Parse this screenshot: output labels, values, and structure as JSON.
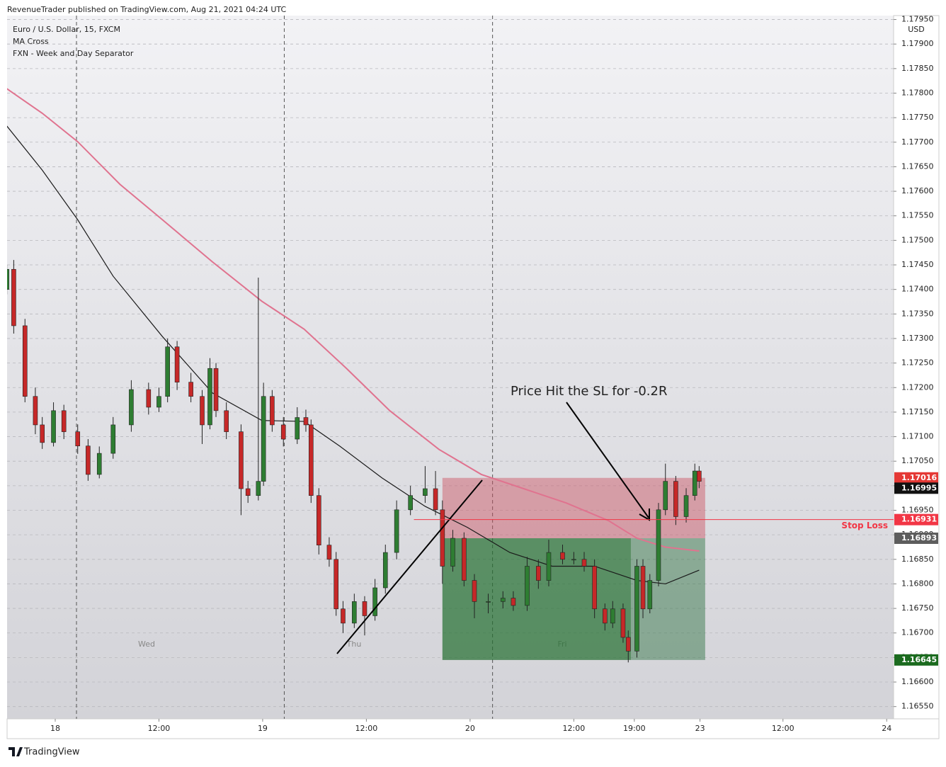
{
  "header": "RevenueTrader published on TradingView.com, Aug 21, 2021 04:24 UTC",
  "footer": "TradingView",
  "chart_data": {
    "type": "candlestick",
    "legend": [
      "Euro / U.S. Dollar, 15, FXCM",
      "MA Cross",
      "FXN - Week and Day Separator"
    ],
    "y_axis_label": "USD",
    "annotation": "Price Hit the SL for -0.2R",
    "day_labels": [
      "Wed",
      "Thu",
      "Fri"
    ],
    "up_color": "#2e7d32",
    "down_color": "#c62828",
    "grid": true,
    "xlim": [
      -5.57,
      97
    ],
    "ylim": [
      1.16525,
      1.17958
    ],
    "xticks": [
      {
        "value": 0,
        "label": "18"
      },
      {
        "value": 12,
        "label": "12:00"
      },
      {
        "value": 24,
        "label": "19"
      },
      {
        "value": 36,
        "label": "12:00"
      },
      {
        "value": 48,
        "label": "20"
      },
      {
        "value": 60,
        "label": "12:00"
      },
      {
        "value": 67,
        "label": "19:00"
      },
      {
        "value": 74.6,
        "label": "23"
      },
      {
        "value": 84.2,
        "label": "12:00"
      },
      {
        "value": 96.2,
        "label": "24"
      }
    ],
    "yticks": [
      {
        "value": 1.1655,
        "label": "1.16550"
      },
      {
        "value": 1.166,
        "label": "1.16600"
      },
      {
        "value": 1.1665,
        "label": "1.16650"
      },
      {
        "value": 1.167,
        "label": "1.16700"
      },
      {
        "value": 1.1675,
        "label": "1.16750"
      },
      {
        "value": 1.168,
        "label": "1.16800"
      },
      {
        "value": 1.1685,
        "label": "1.16850"
      },
      {
        "value": 1.169,
        "label": "1.16900"
      },
      {
        "value": 1.1695,
        "label": "1.16950"
      },
      {
        "value": 1.17,
        "label": "1.17000"
      },
      {
        "value": 1.1705,
        "label": "1.17050"
      },
      {
        "value": 1.171,
        "label": "1.17100"
      },
      {
        "value": 1.1715,
        "label": "1.17150"
      },
      {
        "value": 1.172,
        "label": "1.17200"
      },
      {
        "value": 1.1725,
        "label": "1.17250"
      },
      {
        "value": 1.173,
        "label": "1.17300"
      },
      {
        "value": 1.1735,
        "label": "1.17350"
      },
      {
        "value": 1.174,
        "label": "1.17400"
      },
      {
        "value": 1.1745,
        "label": "1.17450"
      },
      {
        "value": 1.175,
        "label": "1.17500"
      },
      {
        "value": 1.1755,
        "label": "1.17550"
      },
      {
        "value": 1.176,
        "label": "1.17600"
      },
      {
        "value": 1.1765,
        "label": "1.17650"
      },
      {
        "value": 1.177,
        "label": "1.17700"
      },
      {
        "value": 1.1775,
        "label": "1.17750"
      },
      {
        "value": 1.178,
        "label": "1.17800"
      },
      {
        "value": 1.1785,
        "label": "1.17850"
      },
      {
        "value": 1.179,
        "label": "1.17900"
      },
      {
        "value": 1.1795,
        "label": "1.17950"
      }
    ],
    "separators": [
      2.46,
      26.5,
      50.6
    ],
    "x": [
      -5.6,
      -4.8,
      -3.5,
      -2.3,
      -1.5,
      -0.2,
      1.0,
      2.6,
      3.8,
      5.1,
      6.7,
      8.8,
      10.8,
      12.0,
      13.0,
      14.1,
      15.7,
      17.0,
      17.9,
      18.6,
      19.8,
      21.5,
      22.3,
      23.5,
      24.1,
      25.1,
      26.4,
      28.0,
      29.0,
      29.6,
      30.5,
      31.7,
      32.5,
      33.3,
      34.6,
      35.8,
      37.0,
      38.2,
      39.5,
      41.1,
      42.8,
      44.0,
      44.8,
      46.0,
      47.3,
      48.5,
      50.1,
      51.8,
      53.0,
      54.6,
      55.9,
      57.1,
      58.7,
      60.0,
      61.2,
      62.4,
      63.6,
      64.5,
      65.7,
      66.3,
      67.3,
      68.0,
      68.8,
      69.8,
      70.6,
      71.8,
      73.0,
      74.0,
      74.5
    ],
    "open": [
      1.174,
      1.17441,
      1.17326,
      1.17182,
      1.17124,
      1.17088,
      1.17153,
      1.1711,
      1.17081,
      1.17023,
      1.17066,
      1.17124,
      1.17196,
      1.1716,
      1.17182,
      1.17283,
      1.17211,
      1.17182,
      1.17124,
      1.17239,
      1.17153,
      1.1711,
      1.16994,
      1.1698,
      1.17009,
      1.17182,
      1.17124,
      1.17095,
      1.17139,
      1.17124,
      1.1698,
      1.16879,
      1.1685,
      1.16749,
      1.1672,
      1.16764,
      1.16735,
      1.16792,
      1.16864,
      1.16951,
      1.1698,
      1.16994,
      1.16951,
      1.16836,
      1.16893,
      1.16807,
      1.16764,
      1.16764,
      1.16771,
      1.16756,
      1.16836,
      1.16807,
      1.16864,
      1.1685,
      1.1685,
      1.16836,
      1.16749,
      1.1672,
      1.16749,
      1.16691,
      1.16663,
      1.16836,
      1.16749,
      1.16807,
      1.16951,
      1.17009,
      1.16937,
      1.1698,
      1.1703
    ],
    "high": [
      1.1745,
      1.1746,
      1.1734,
      1.172,
      1.1714,
      1.1717,
      1.17165,
      1.17125,
      1.17095,
      1.1708,
      1.1714,
      1.17215,
      1.1721,
      1.172,
      1.173,
      1.17295,
      1.1723,
      1.17195,
      1.1726,
      1.1725,
      1.1717,
      1.17125,
      1.1701,
      1.17424,
      1.1721,
      1.17195,
      1.1714,
      1.1716,
      1.17155,
      1.17135,
      1.16995,
      1.16895,
      1.16865,
      1.16765,
      1.1678,
      1.16775,
      1.1681,
      1.1688,
      1.1697,
      1.17,
      1.1704,
      1.1703,
      1.1697,
      1.1691,
      1.16905,
      1.1682,
      1.1678,
      1.16785,
      1.16785,
      1.16855,
      1.1685,
      1.1689,
      1.1688,
      1.16865,
      1.16865,
      1.1685,
      1.1676,
      1.16765,
      1.1676,
      1.16705,
      1.1685,
      1.1685,
      1.1682,
      1.16965,
      1.17045,
      1.1702,
      1.16995,
      1.17045,
      1.1704
    ],
    "low": [
      1.1739,
      1.1731,
      1.1717,
      1.17105,
      1.17075,
      1.1708,
      1.17095,
      1.17065,
      1.1701,
      1.17015,
      1.17055,
      1.1711,
      1.17145,
      1.1715,
      1.1717,
      1.17195,
      1.1717,
      1.17085,
      1.17115,
      1.1714,
      1.17095,
      1.1694,
      1.16965,
      1.1697,
      1.17,
      1.1711,
      1.1708,
      1.17085,
      1.1711,
      1.16965,
      1.1686,
      1.16835,
      1.16735,
      1.167,
      1.1671,
      1.16695,
      1.16725,
      1.1678,
      1.1685,
      1.1694,
      1.16965,
      1.1694,
      1.168,
      1.16825,
      1.16795,
      1.1673,
      1.1674,
      1.1675,
      1.16745,
      1.16745,
      1.1679,
      1.16795,
      1.1684,
      1.1684,
      1.16825,
      1.1673,
      1.16705,
      1.1671,
      1.1668,
      1.1664,
      1.1665,
      1.1673,
      1.1674,
      1.16795,
      1.1694,
      1.1692,
      1.16925,
      1.1697,
      1.16995
    ],
    "close": [
      1.17441,
      1.17326,
      1.17182,
      1.17124,
      1.17088,
      1.17153,
      1.1711,
      1.17081,
      1.17023,
      1.17066,
      1.17124,
      1.17196,
      1.1716,
      1.17182,
      1.17283,
      1.17211,
      1.17182,
      1.17124,
      1.17239,
      1.17153,
      1.1711,
      1.16994,
      1.1698,
      1.17009,
      1.17182,
      1.17124,
      1.17095,
      1.17139,
      1.17124,
      1.1698,
      1.16879,
      1.1685,
      1.16749,
      1.1672,
      1.16764,
      1.16735,
      1.16792,
      1.16864,
      1.16951,
      1.1698,
      1.16994,
      1.16951,
      1.16836,
      1.16893,
      1.16807,
      1.16764,
      1.16764,
      1.16771,
      1.16756,
      1.16836,
      1.16807,
      1.16864,
      1.1685,
      1.1685,
      1.16836,
      1.16749,
      1.1672,
      1.16749,
      1.16691,
      1.16663,
      1.16836,
      1.16749,
      1.16807,
      1.16951,
      1.17009,
      1.16937,
      1.1698,
      1.1703,
      1.17009
    ],
    "ma_lines": [
      {
        "color": "#e0738f",
        "x": [
          -5.6,
          -1.5,
          2.6,
          7.5,
          12.4,
          18.2,
          23.9,
          28.8,
          33.7,
          38.7,
          44.4,
          49.3,
          54.2,
          59.1,
          64.0,
          67.3,
          70.6,
          74.5
        ],
        "values": [
          1.17809,
          1.17759,
          1.17701,
          1.17614,
          1.17542,
          1.17456,
          1.17376,
          1.17319,
          1.17239,
          1.17153,
          1.17074,
          1.17023,
          1.16994,
          1.16965,
          1.16929,
          1.16893,
          1.16875,
          1.16867
        ]
      },
      {
        "color": "#1a1a1a",
        "x": [
          -5.6,
          -1.5,
          2.6,
          6.7,
          12.4,
          18.2,
          23.9,
          28.8,
          32.9,
          37.8,
          42.8,
          47.7,
          52.6,
          57.5,
          62.4,
          67.3,
          70.6,
          74.5
        ],
        "values": [
          1.17733,
          1.17643,
          1.17542,
          1.17427,
          1.17304,
          1.17189,
          1.17133,
          1.17131,
          1.17081,
          1.17016,
          1.16958,
          1.16915,
          1.16864,
          1.16836,
          1.16836,
          1.16807,
          1.168,
          1.16828
        ]
      }
    ],
    "position": {
      "entry": 1.16893,
      "stop": 1.17016,
      "target": 1.16645,
      "start": 44.8,
      "end": 75.2,
      "exit": 66.6
    },
    "stop_loss": {
      "value": 1.16931,
      "start": 41.5,
      "label": "Stop Loss"
    },
    "price_tags": [
      {
        "value": 1.17016,
        "color": "#e53935"
      },
      {
        "value": 1.16995,
        "color": "#111111"
      },
      {
        "value": 1.16931,
        "color": "#f23645"
      },
      {
        "value": 1.16893,
        "color": "#5d5d5d"
      },
      {
        "value": 1.16645,
        "color": "#1b6b1f"
      }
    ]
  }
}
